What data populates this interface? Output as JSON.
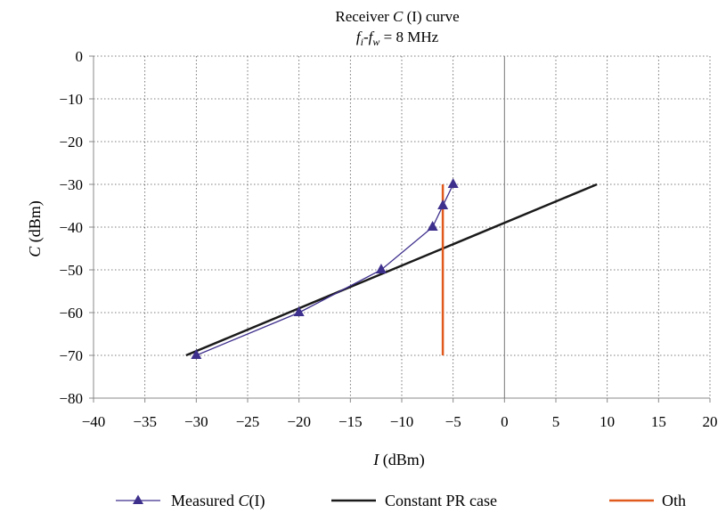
{
  "chart_data": {
    "type": "line",
    "title": {
      "line1": {
        "pre": "Receiver ",
        "var": "C",
        "post": " (I) curve"
      },
      "line2": {
        "a": "f",
        "a_sub": "i",
        "dash": "-",
        "b": "f",
        "b_sub": "w",
        "rest": " = 8 MHz"
      }
    },
    "xlabel": {
      "var": "I",
      "unit": " (dBm)"
    },
    "ylabel": {
      "var": "C",
      "unit": " (dBm)"
    },
    "xlim": [
      -40,
      20
    ],
    "ylim": [
      -80,
      0
    ],
    "xticks": [
      -40,
      -35,
      -30,
      -25,
      -20,
      -15,
      -10,
      -5,
      0,
      5,
      10,
      15,
      20
    ],
    "yticks": [
      0,
      -10,
      -20,
      -30,
      -40,
      -50,
      -60,
      -70,
      -80
    ],
    "xtick_labels": [
      "−40",
      "−35",
      "−30",
      "−25",
      "−20",
      "−15",
      "−10",
      "−5",
      "0",
      "5",
      "10",
      "15",
      "20"
    ],
    "ytick_labels": [
      "0",
      "−10",
      "−20",
      "−30",
      "−40",
      "−50",
      "−60",
      "−70",
      "−80"
    ],
    "grid": true,
    "legend_position": "bottom",
    "series": [
      {
        "name_pre": "Measured ",
        "name_var": "C",
        "name_post": "(I)",
        "color": "#3d2f8c",
        "marker": "triangle",
        "x": [
          -30,
          -20,
          -12,
          -7,
          -6,
          -5
        ],
        "y": [
          -70,
          -60,
          -50,
          -40,
          -35,
          -30
        ]
      },
      {
        "name": "Constant PR case",
        "color": "#1a1a1a",
        "marker": "none",
        "x": [
          -31,
          9
        ],
        "y": [
          -70,
          -30
        ]
      },
      {
        "name": "Oth",
        "color": "#e05a1e",
        "marker": "none",
        "x": [
          -6,
          -6
        ],
        "y": [
          -70,
          -30
        ]
      }
    ]
  }
}
